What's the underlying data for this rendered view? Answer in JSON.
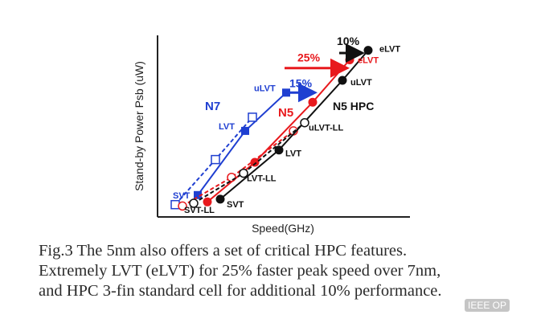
{
  "chart_data": {
    "type": "line",
    "xlabel": "Speed(GHz)",
    "ylabel": "Stand-by Power Psb (uW)",
    "grid": false,
    "series": [
      {
        "name": "N7",
        "color": "#1f3fd1",
        "marker": "square",
        "style": "solid",
        "points": [
          {
            "x": 50,
            "y": 16,
            "label": "SVT"
          },
          {
            "x": 109,
            "y": 63,
            "label": "LVT"
          },
          {
            "x": 160,
            "y": 91,
            "label": "uLVT"
          }
        ]
      },
      {
        "name": "",
        "color": "#1f3fd1",
        "marker": "open-square",
        "style": "dashed",
        "points": [
          {
            "x": 22,
            "y": 9
          },
          {
            "x": 72,
            "y": 42
          },
          {
            "x": 118,
            "y": 73
          }
        ]
      },
      {
        "name": "N5",
        "color": "#e8191d",
        "marker": "circle",
        "style": "solid",
        "points": [
          {
            "x": 62,
            "y": 11
          },
          {
            "x": 121,
            "y": 40
          },
          {
            "x": 193,
            "y": 84
          },
          {
            "x": 239,
            "y": 115,
            "label": "eLVT"
          }
        ]
      },
      {
        "name": "",
        "color": "#e8191d",
        "marker": "open-circle",
        "style": "dashed",
        "points": [
          {
            "x": 31,
            "y": 8
          },
          {
            "x": 92,
            "y": 29
          },
          {
            "x": 169,
            "y": 63
          }
        ]
      },
      {
        "name": "N5 HPC",
        "color": "#111111",
        "marker": "circle",
        "style": "solid",
        "points": [
          {
            "x": 78,
            "y": 13,
            "label": "SVT"
          },
          {
            "x": 151,
            "y": 49,
            "label": "LVT"
          },
          {
            "x": 230,
            "y": 100,
            "label": "uLVT"
          },
          {
            "x": 262,
            "y": 122,
            "label": "eLVT"
          }
        ]
      },
      {
        "name": "",
        "color": "#111111",
        "marker": "open-circle",
        "style": "dashed",
        "points": [
          {
            "x": 45,
            "y": 10,
            "label": "SVT-LL"
          },
          {
            "x": 107,
            "y": 32,
            "label": "LVT-LL"
          },
          {
            "x": 183,
            "y": 69,
            "label": "uLVT-LL"
          }
        ]
      }
    ],
    "annotations": [
      {
        "text": "15%",
        "color": "#1f3fd1",
        "from": {
          "x": 160,
          "y": 91
        },
        "to": {
          "x": 193,
          "y": 91
        }
      },
      {
        "text": "25%",
        "color": "#e8191d",
        "from": {
          "x": 158,
          "y": 109
        },
        "to": {
          "x": 233,
          "y": 109
        }
      },
      {
        "text": "10%",
        "color": "#111111",
        "from": {
          "x": 226,
          "y": 120
        },
        "to": {
          "x": 252,
          "y": 120
        }
      }
    ]
  },
  "caption": {
    "line1": "Fig.3 The 5nm also offers a set of critical HPC features.",
    "line2": "Extremely LVT (eLVT) for 25% faster peak speed over 7nm,",
    "line3": "and HPC 3-fin standard cell for additional 10% performance."
  },
  "watermark": "IEEE OP"
}
